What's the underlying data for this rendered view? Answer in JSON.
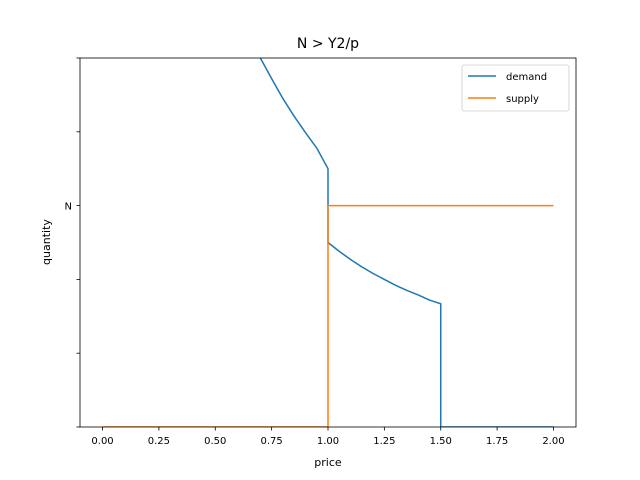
{
  "chart_data": {
    "type": "line",
    "title": "N > Y2/p",
    "xlabel": "price",
    "ylabel": "quantity",
    "xlim": [
      -0.1,
      2.1
    ],
    "ylim": [
      0,
      5
    ],
    "x_ticks": [
      0.0,
      0.25,
      0.5,
      0.75,
      1.0,
      1.25,
      1.5,
      1.75,
      2.0
    ],
    "x_tick_labels": [
      "0.00",
      "0.25",
      "0.50",
      "0.75",
      "1.00",
      "1.25",
      "1.50",
      "1.75",
      "2.00"
    ],
    "y_ticks": [
      0,
      1,
      2,
      3,
      4,
      5
    ],
    "y_tick_labels": [
      "",
      "",
      "",
      "N",
      "",
      ""
    ],
    "grid": false,
    "legend_position": "top-right",
    "series": [
      {
        "name": "demand",
        "color": "#1f77b4",
        "points": [
          [
            0.7,
            5.0
          ],
          [
            0.75,
            4.72
          ],
          [
            0.8,
            4.45
          ],
          [
            0.85,
            4.21
          ],
          [
            0.9,
            3.99
          ],
          [
            0.95,
            3.78
          ],
          [
            1.0,
            3.5
          ],
          [
            1.0,
            2.5
          ],
          [
            1.05,
            2.38
          ],
          [
            1.1,
            2.27
          ],
          [
            1.15,
            2.17
          ],
          [
            1.2,
            2.08
          ],
          [
            1.25,
            2.0
          ],
          [
            1.3,
            1.92
          ],
          [
            1.35,
            1.85
          ],
          [
            1.4,
            1.79
          ],
          [
            1.45,
            1.72
          ],
          [
            1.5,
            1.67
          ],
          [
            1.5,
            0.0
          ],
          [
            1.75,
            0.0
          ],
          [
            2.0,
            0.0
          ]
        ]
      },
      {
        "name": "supply",
        "color": "#ff7f0e",
        "points": [
          [
            0.0,
            0.0
          ],
          [
            0.5,
            0.0
          ],
          [
            1.0,
            0.0
          ],
          [
            1.0,
            3.0
          ],
          [
            1.5,
            3.0
          ],
          [
            2.0,
            3.0
          ]
        ]
      }
    ]
  }
}
